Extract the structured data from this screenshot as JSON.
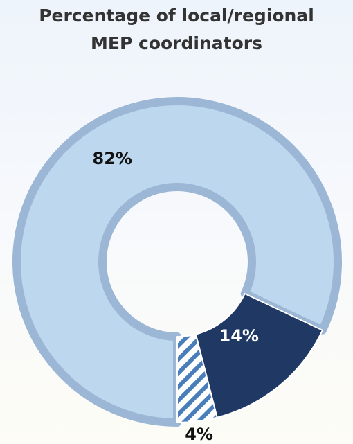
{
  "chart_data": {
    "type": "donut",
    "title_lines": [
      "Percentage of local/regional",
      "MEP coordinators"
    ],
    "values": [
      82,
      14,
      4
    ],
    "value_labels": [
      "82%",
      "14%",
      "4%"
    ],
    "colors": [
      "#bdd7ee",
      "#1f3864",
      "#4a7ebb"
    ],
    "hatch": [
      false,
      false,
      true
    ],
    "label_colors": [
      "#111111",
      "#ffffff",
      "#111111"
    ]
  }
}
